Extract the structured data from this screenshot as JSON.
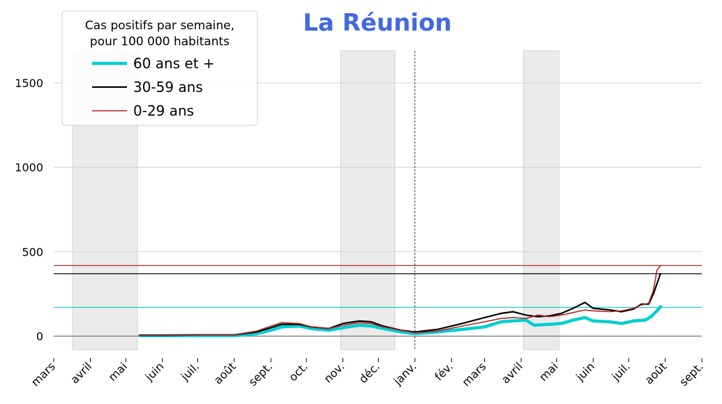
{
  "chart_data": {
    "type": "line",
    "title": "La Réunion",
    "title_color": "#4169e1",
    "xlabel": "",
    "ylabel": "",
    "x_start": "2020-03-01",
    "xlim": [
      "2020-03-01",
      "2021-09-01"
    ],
    "ylim": [
      -80,
      1690
    ],
    "grid": true,
    "x_ticks": [
      {
        "date": "2020-03-01",
        "label": "mars"
      },
      {
        "date": "2020-04-01",
        "label": "avril"
      },
      {
        "date": "2020-05-01",
        "label": "mai"
      },
      {
        "date": "2020-06-01",
        "label": "juin"
      },
      {
        "date": "2020-07-01",
        "label": "juil."
      },
      {
        "date": "2020-08-01",
        "label": "août"
      },
      {
        "date": "2020-09-01",
        "label": "sept."
      },
      {
        "date": "2020-10-01",
        "label": "oct."
      },
      {
        "date": "2020-11-01",
        "label": "nov."
      },
      {
        "date": "2020-12-01",
        "label": "déc."
      },
      {
        "date": "2021-01-01",
        "label": "janv."
      },
      {
        "date": "2021-02-01",
        "label": "fév."
      },
      {
        "date": "2021-03-01",
        "label": "mars"
      },
      {
        "date": "2021-04-01",
        "label": "avril"
      },
      {
        "date": "2021-05-01",
        "label": "mai"
      },
      {
        "date": "2021-06-01",
        "label": "juin"
      },
      {
        "date": "2021-07-01",
        "label": "juil."
      },
      {
        "date": "2021-08-01",
        "label": "août"
      },
      {
        "date": "2021-09-01",
        "label": "sept."
      }
    ],
    "y_ticks": [
      0,
      500,
      1000,
      1500
    ],
    "shaded_periods": [
      {
        "start": "2020-03-17",
        "end": "2020-05-11"
      },
      {
        "start": "2020-10-30",
        "end": "2020-12-15"
      },
      {
        "start": "2021-04-03",
        "end": "2021-05-03"
      }
    ],
    "vline_date": "2021-01-01",
    "legend": {
      "title": "Cas positifs par semaine,\npour 100 000 habitants",
      "location": "upper-left"
    },
    "series": [
      {
        "name": "60 ans et +",
        "color": "#00ced1",
        "width": 4.5,
        "hline": 170,
        "points": [
          [
            "2020-05-13",
            3
          ],
          [
            "2020-06-01",
            3
          ],
          [
            "2020-07-01",
            3
          ],
          [
            "2020-08-01",
            3
          ],
          [
            "2020-08-20",
            15
          ],
          [
            "2020-09-01",
            35
          ],
          [
            "2020-09-10",
            55
          ],
          [
            "2020-09-25",
            60
          ],
          [
            "2020-10-05",
            45
          ],
          [
            "2020-10-20",
            35
          ],
          [
            "2020-11-01",
            50
          ],
          [
            "2020-11-15",
            65
          ],
          [
            "2020-11-25",
            60
          ],
          [
            "2020-12-05",
            45
          ],
          [
            "2020-12-20",
            25
          ],
          [
            "2021-01-01",
            15
          ],
          [
            "2021-01-20",
            25
          ],
          [
            "2021-02-10",
            40
          ],
          [
            "2021-03-01",
            55
          ],
          [
            "2021-03-15",
            85
          ],
          [
            "2021-03-25",
            90
          ],
          [
            "2021-04-05",
            95
          ],
          [
            "2021-04-12",
            65
          ],
          [
            "2021-04-25",
            70
          ],
          [
            "2021-05-05",
            75
          ],
          [
            "2021-05-15",
            95
          ],
          [
            "2021-05-25",
            110
          ],
          [
            "2021-06-01",
            90
          ],
          [
            "2021-06-15",
            85
          ],
          [
            "2021-06-25",
            75
          ],
          [
            "2021-07-05",
            90
          ],
          [
            "2021-07-15",
            95
          ],
          [
            "2021-07-20",
            115
          ],
          [
            "2021-07-25",
            150
          ],
          [
            "2021-07-28",
            175
          ]
        ]
      },
      {
        "name": "30-59 ans",
        "color": "#000000",
        "width": 2.2,
        "hline": 370,
        "points": [
          [
            "2020-05-13",
            5
          ],
          [
            "2020-06-01",
            5
          ],
          [
            "2020-07-01",
            8
          ],
          [
            "2020-08-01",
            8
          ],
          [
            "2020-08-20",
            25
          ],
          [
            "2020-09-01",
            50
          ],
          [
            "2020-09-10",
            70
          ],
          [
            "2020-09-25",
            70
          ],
          [
            "2020-10-05",
            55
          ],
          [
            "2020-10-20",
            45
          ],
          [
            "2020-11-01",
            75
          ],
          [
            "2020-11-15",
            90
          ],
          [
            "2020-11-25",
            85
          ],
          [
            "2020-12-05",
            60
          ],
          [
            "2020-12-20",
            35
          ],
          [
            "2021-01-01",
            25
          ],
          [
            "2021-01-20",
            40
          ],
          [
            "2021-02-10",
            75
          ],
          [
            "2021-03-01",
            110
          ],
          [
            "2021-03-15",
            135
          ],
          [
            "2021-03-25",
            145
          ],
          [
            "2021-04-05",
            125
          ],
          [
            "2021-04-15",
            115
          ],
          [
            "2021-04-25",
            120
          ],
          [
            "2021-05-05",
            135
          ],
          [
            "2021-05-15",
            165
          ],
          [
            "2021-05-25",
            200
          ],
          [
            "2021-06-01",
            165
          ],
          [
            "2021-06-15",
            155
          ],
          [
            "2021-06-25",
            145
          ],
          [
            "2021-07-05",
            160
          ],
          [
            "2021-07-12",
            190
          ],
          [
            "2021-07-18",
            190
          ],
          [
            "2021-07-22",
            250
          ],
          [
            "2021-07-25",
            310
          ],
          [
            "2021-07-28",
            370
          ]
        ]
      },
      {
        "name": "0-29 ans",
        "color": "#b22222",
        "width": 1.6,
        "hline": 418,
        "points": [
          [
            "2020-05-13",
            5
          ],
          [
            "2020-06-01",
            5
          ],
          [
            "2020-07-01",
            8
          ],
          [
            "2020-08-01",
            8
          ],
          [
            "2020-08-20",
            30
          ],
          [
            "2020-09-01",
            60
          ],
          [
            "2020-09-10",
            80
          ],
          [
            "2020-09-25",
            75
          ],
          [
            "2020-10-05",
            55
          ],
          [
            "2020-10-20",
            45
          ],
          [
            "2020-11-01",
            65
          ],
          [
            "2020-11-15",
            80
          ],
          [
            "2020-11-25",
            75
          ],
          [
            "2020-12-05",
            55
          ],
          [
            "2020-12-20",
            35
          ],
          [
            "2021-01-01",
            20
          ],
          [
            "2021-01-20",
            30
          ],
          [
            "2021-02-10",
            60
          ],
          [
            "2021-03-01",
            85
          ],
          [
            "2021-03-15",
            105
          ],
          [
            "2021-03-25",
            110
          ],
          [
            "2021-04-05",
            105
          ],
          [
            "2021-04-15",
            125
          ],
          [
            "2021-04-25",
            115
          ],
          [
            "2021-05-05",
            125
          ],
          [
            "2021-05-15",
            140
          ],
          [
            "2021-05-25",
            155
          ],
          [
            "2021-06-01",
            150
          ],
          [
            "2021-06-15",
            145
          ],
          [
            "2021-06-25",
            150
          ],
          [
            "2021-07-05",
            165
          ],
          [
            "2021-07-12",
            185
          ],
          [
            "2021-07-18",
            195
          ],
          [
            "2021-07-22",
            270
          ],
          [
            "2021-07-25",
            390
          ],
          [
            "2021-07-28",
            418
          ]
        ]
      }
    ]
  }
}
